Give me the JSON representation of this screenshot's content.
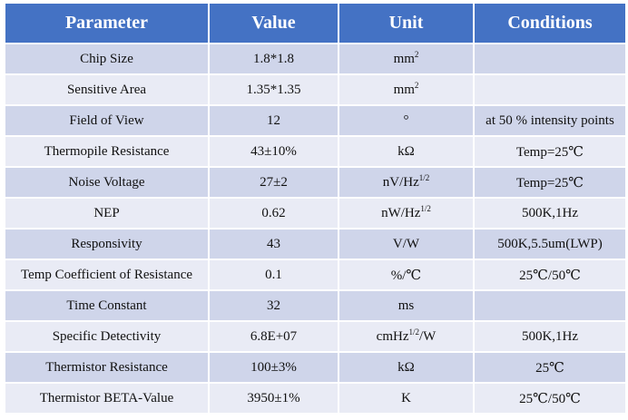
{
  "table": {
    "headers": [
      "Parameter",
      "Value",
      "Unit",
      "Conditions"
    ],
    "rows": [
      {
        "parameter": "Chip Size",
        "value": "1.8*1.8",
        "unit": {
          "base": "mm",
          "sup": "2"
        },
        "conditions": ""
      },
      {
        "parameter": "Sensitive Area",
        "value": "1.35*1.35",
        "unit": {
          "base": "mm",
          "sup": "2"
        },
        "conditions": ""
      },
      {
        "parameter": "Field of View",
        "value": "12",
        "unit": {
          "base": "°",
          "sup": ""
        },
        "conditions": "at 50 % intensity points"
      },
      {
        "parameter": "Thermopile Resistance",
        "value": "43±10%",
        "unit": {
          "base": "kΩ",
          "sup": ""
        },
        "conditions": "Temp=25℃"
      },
      {
        "parameter": "Noise Voltage",
        "value": "27±2",
        "unit": {
          "base": "nV/Hz",
          "sup": "1/2"
        },
        "conditions": "Temp=25℃"
      },
      {
        "parameter": "NEP",
        "value": "0.62",
        "unit": {
          "base": "nW/Hz",
          "sup": "1/2"
        },
        "conditions": "500K,1Hz"
      },
      {
        "parameter": "Responsivity",
        "value": "43",
        "unit": {
          "base": "V/W",
          "sup": ""
        },
        "conditions": "500K,5.5um(LWP)"
      },
      {
        "parameter": "Temp Coefficient of Resistance",
        "value": "0.1",
        "unit": {
          "base": "%/℃",
          "sup": ""
        },
        "conditions": "25℃/50℃"
      },
      {
        "parameter": "Time Constant",
        "value": "32",
        "unit": {
          "base": "ms",
          "sup": ""
        },
        "conditions": ""
      },
      {
        "parameter": "Specific Detectivity",
        "value": "6.8E+07",
        "unit": {
          "base": "cmHz",
          "sup": "1/2",
          "after": "/W"
        },
        "conditions": "500K,1Hz"
      },
      {
        "parameter": "Thermistor Resistance",
        "value": "100±3%",
        "unit": {
          "base": "kΩ",
          "sup": ""
        },
        "conditions": "25℃"
      },
      {
        "parameter": "Thermistor BETA-Value",
        "value": "3950±1%",
        "unit": {
          "base": "K",
          "sup": ""
        },
        "conditions": "25℃/50℃"
      }
    ]
  }
}
